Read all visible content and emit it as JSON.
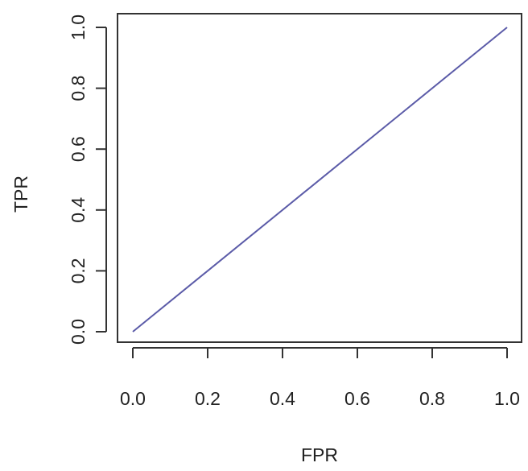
{
  "chart_data": {
    "type": "line",
    "title": "",
    "xlabel": "FPR",
    "ylabel": "TPR",
    "xlim": [
      0,
      1
    ],
    "ylim": [
      0,
      1
    ],
    "xticks": [
      "0.0",
      "0.2",
      "0.4",
      "0.6",
      "0.8",
      "1.0"
    ],
    "yticks": [
      "0.0",
      "0.2",
      "0.4",
      "0.6",
      "0.8",
      "1.0"
    ],
    "grid": false,
    "legend": "none",
    "series": [
      {
        "x": [
          0,
          1
        ],
        "y": [
          0,
          1
        ],
        "color": "#5b5ba8"
      }
    ]
  }
}
